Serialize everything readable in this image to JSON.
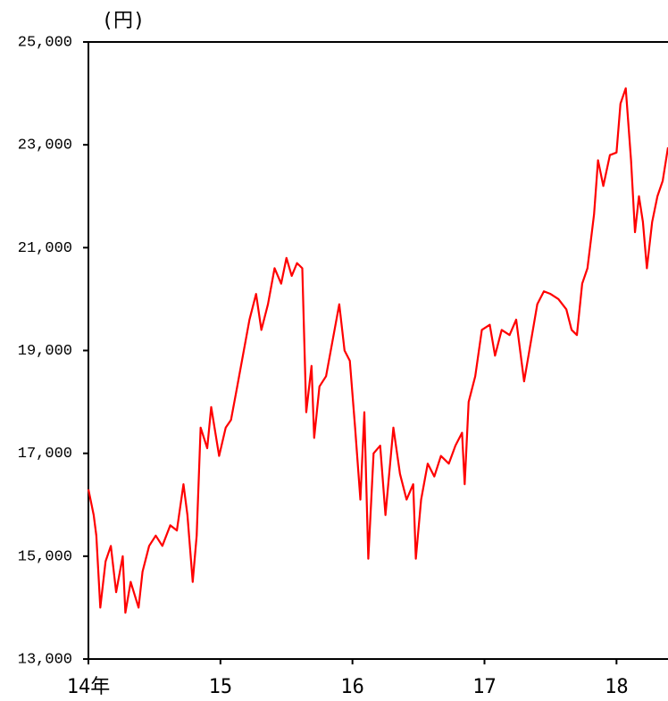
{
  "chart_data": {
    "type": "line",
    "y_label": "(円)",
    "x": [
      2014.0,
      2014.04,
      2014.06,
      2014.09,
      2014.13,
      2014.17,
      2014.21,
      2014.26,
      2014.28,
      2014.32,
      2014.38,
      2014.41,
      2014.46,
      2014.51,
      2014.56,
      2014.62,
      2014.67,
      2014.72,
      2014.75,
      2014.79,
      2014.82,
      2014.85,
      2014.9,
      2014.93,
      2014.99,
      2015.04,
      2015.08,
      2015.12,
      2015.17,
      2015.22,
      2015.27,
      2015.31,
      2015.36,
      2015.41,
      2015.46,
      2015.5,
      2015.54,
      2015.58,
      2015.62,
      2015.65,
      2015.69,
      2015.71,
      2015.75,
      2015.8,
      2015.85,
      2015.9,
      2015.94,
      2015.98,
      2016.02,
      2016.06,
      2016.09,
      2016.12,
      2016.16,
      2016.21,
      2016.25,
      2016.31,
      2016.36,
      2016.41,
      2016.46,
      2016.48,
      2016.52,
      2016.57,
      2016.62,
      2016.67,
      2016.73,
      2016.78,
      2016.83,
      2016.85,
      2016.88,
      2016.93,
      2016.98,
      2017.04,
      2017.08,
      2017.13,
      2017.19,
      2017.24,
      2017.3,
      2017.34,
      2017.4,
      2017.45,
      2017.5,
      2017.56,
      2017.62,
      2017.66,
      2017.7,
      2017.74,
      2017.78,
      2017.83,
      2017.86,
      2017.9,
      2017.95,
      2018.0,
      2018.03,
      2018.07,
      2018.11,
      2018.14,
      2018.17,
      2018.2,
      2018.23,
      2018.27,
      2018.31,
      2018.35,
      2018.39
    ],
    "series": [
      {
        "color": "#ff0000",
        "values": [
          16300,
          15800,
          15400,
          14000,
          14900,
          15200,
          14300,
          15000,
          13900,
          14500,
          14000,
          14700,
          15200,
          15400,
          15200,
          15600,
          15500,
          16400,
          15800,
          14500,
          15400,
          17500,
          17100,
          17900,
          16950,
          17500,
          17650,
          18200,
          18900,
          19600,
          20100,
          19400,
          19900,
          20600,
          20300,
          20800,
          20450,
          20700,
          20600,
          17800,
          18700,
          17300,
          18300,
          18500,
          19200,
          19900,
          19000,
          18800,
          17500,
          16100,
          17800,
          14950,
          17000,
          17150,
          15800,
          17500,
          16600,
          16100,
          16400,
          14950,
          16100,
          16800,
          16550,
          16950,
          16800,
          17150,
          17400,
          16400,
          18000,
          18500,
          19400,
          19500,
          18900,
          19400,
          19300,
          19600,
          18400,
          19000,
          19900,
          20150,
          20100,
          20000,
          19800,
          19400,
          19300,
          20300,
          20600,
          21650,
          22700,
          22200,
          22800,
          22850,
          23800,
          24100,
          22700,
          21300,
          22000,
          21500,
          20600,
          21500,
          22000,
          22300,
          22950
        ]
      }
    ],
    "xlim": [
      2014,
      2018.39
    ],
    "xticks": [
      {
        "value": 2014,
        "label": "14年"
      },
      {
        "value": 2015,
        "label": "15"
      },
      {
        "value": 2016,
        "label": "16"
      },
      {
        "value": 2017,
        "label": "17"
      },
      {
        "value": 2018,
        "label": "18"
      }
    ],
    "ylim": [
      13000,
      25000
    ],
    "yticks": [
      {
        "value": 13000,
        "label": "13,000"
      },
      {
        "value": 15000,
        "label": "15,000"
      },
      {
        "value": 17000,
        "label": "17,000"
      },
      {
        "value": 19000,
        "label": "19,000"
      },
      {
        "value": 21000,
        "label": "21,000"
      },
      {
        "value": 23000,
        "label": "23,000"
      },
      {
        "value": 25000,
        "label": "25,000"
      }
    ],
    "grid": false
  }
}
